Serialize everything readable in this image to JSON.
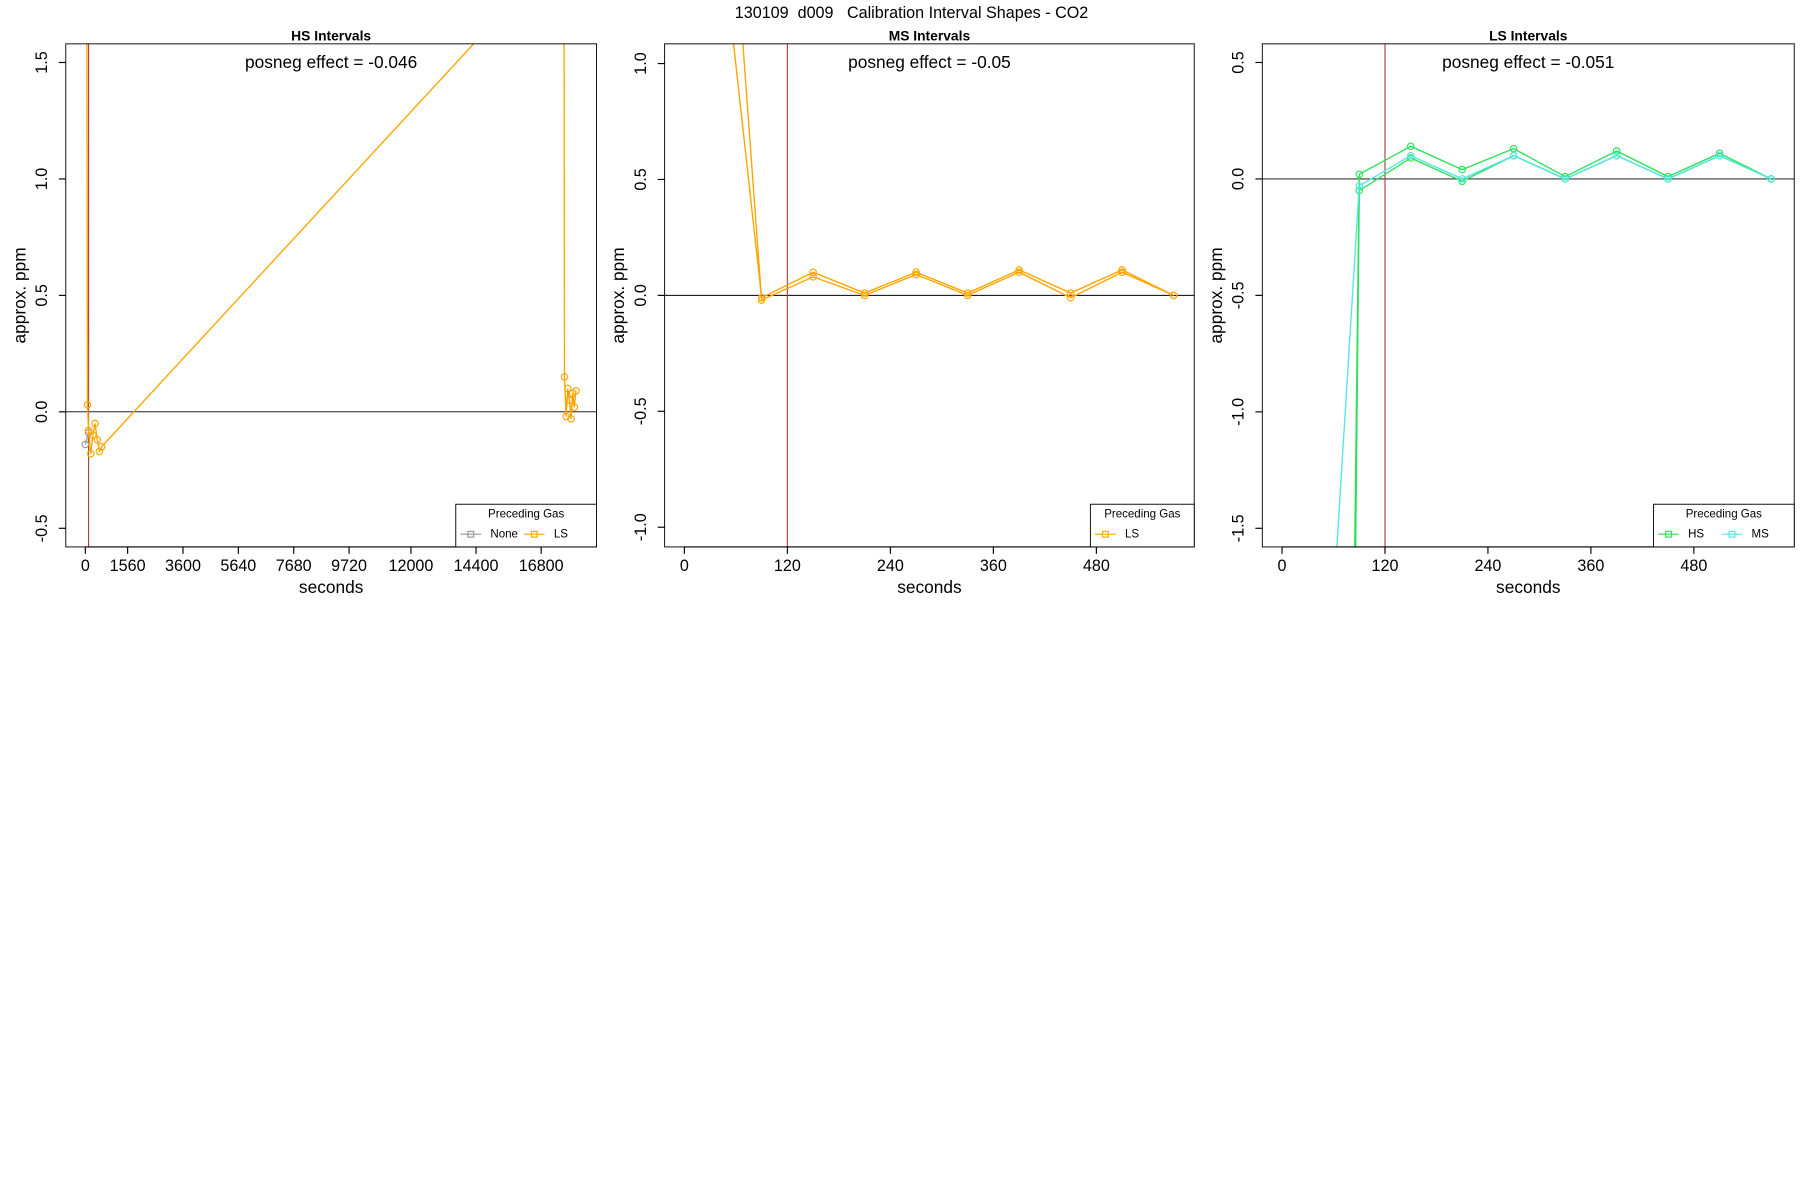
{
  "title": "130109  d009   Calibration Interval Shapes - CO2",
  "chart_data": [
    {
      "type": "line",
      "title": "HS Intervals",
      "annotation": "posneg effect = -0.046",
      "xlabel": "seconds",
      "ylabel": "approx. ppm",
      "xlim": [
        -720,
        18840
      ],
      "ylim": [
        -0.58,
        1.58
      ],
      "xticks": [
        0,
        1560,
        3600,
        5640,
        7680,
        9720,
        12000,
        14400,
        16800
      ],
      "yticks": [
        -0.5,
        {
          "value": 0,
          "label": "0.0"
        },
        {
          "value": 0.5,
          "label": "0.5"
        },
        {
          "value": 1,
          "label": "1.0"
        },
        {
          "value": 1.5,
          "label": "1.5"
        }
      ],
      "hline": 0,
      "vline": 120,
      "vline_color": "#b0413e",
      "legend_title": "Preceding Gas",
      "legend": "bottom right",
      "series": [
        {
          "name": "None",
          "color": "#999999",
          "x": [
            0,
            120
          ],
          "values": [
            -0.14,
            -0.09
          ]
        },
        {
          "name": "LS",
          "color": "#ffa500",
          "x": [
            40,
            80,
            120,
            200,
            280,
            360,
            440,
            520,
            600,
            17640,
            17660,
            17720,
            17780,
            17840,
            17900,
            17960,
            18020,
            18080
          ],
          "values": [
            3.0,
            0.03,
            -0.08,
            -0.18,
            -0.1,
            -0.05,
            -0.12,
            -0.17,
            -0.15,
            2.0,
            0.15,
            -0.02,
            0.1,
            0.05,
            -0.03,
            0.08,
            0.02,
            0.09
          ]
        }
      ]
    },
    {
      "type": "line",
      "title": "MS Intervals",
      "annotation": "posneg effect = -0.05",
      "xlabel": "seconds",
      "ylabel": "approx. ppm",
      "xlim": [
        -23,
        594
      ],
      "ylim": [
        -1.085,
        1.085
      ],
      "xticks": [
        0,
        120,
        240,
        360,
        480
      ],
      "yticks": [
        {
          "value": -1,
          "label": "-1.0"
        },
        -0.5,
        {
          "value": 0,
          "label": "0.0"
        },
        {
          "value": 0.5,
          "label": "0.5"
        },
        {
          "value": 1,
          "label": "1.0"
        }
      ],
      "hline": 0,
      "vline": 120,
      "vline_color": "#b0413e",
      "legend_title": "Preceding Gas",
      "legend": "bottom right",
      "series": [
        {
          "name": "LS",
          "color": "#ffa500",
          "x": [
            30,
            90,
            150,
            210,
            270,
            330,
            390,
            450,
            510,
            570,
            null,
            60,
            90,
            150,
            210,
            270,
            330,
            390,
            450,
            510,
            570
          ],
          "values": [
            2.0,
            -0.01,
            0.1,
            0.01,
            0.1,
            0.01,
            0.11,
            0.01,
            0.11,
            0.0,
            null,
            1.5,
            -0.02,
            0.08,
            0.0,
            0.09,
            0.0,
            0.1,
            -0.01,
            0.1,
            0.0
          ]
        }
      ]
    },
    {
      "type": "line",
      "title": "LS Intervals",
      "annotation": "posneg effect = -0.051",
      "xlabel": "seconds",
      "ylabel": "approx. ppm",
      "xlim": [
        -23,
        597
      ],
      "ylim": [
        -1.58,
        0.58
      ],
      "xticks": [
        0,
        120,
        240,
        360,
        480
      ],
      "yticks": [
        -1.5,
        {
          "value": -1,
          "label": "-1.0"
        },
        -0.5,
        {
          "value": 0,
          "label": "0.0"
        },
        {
          "value": 0.5,
          "label": "0.5"
        }
      ],
      "hline": 0,
      "vline": 120,
      "vline_color": "#b0413e",
      "legend_title": "Preceding Gas",
      "legend": "bottom right",
      "series": [
        {
          "name": "HS",
          "color": "#2fe05a",
          "x": [
            80,
            90,
            150,
            210,
            270,
            330,
            390,
            450,
            510,
            570,
            null,
            82,
            90,
            150,
            210,
            270,
            330,
            390,
            450,
            510,
            570
          ],
          "values": [
            -3.0,
            0.02,
            0.14,
            0.04,
            0.13,
            0.01,
            0.12,
            0.01,
            0.11,
            0.0,
            null,
            -3.0,
            -0.05,
            0.09,
            -0.01,
            0.1,
            0.0,
            0.1,
            0.0,
            0.1,
            0.0
          ]
        },
        {
          "name": "MS",
          "color": "#55e6e6",
          "x": [
            40,
            90,
            150,
            210,
            270,
            330,
            390,
            450,
            510,
            570
          ],
          "values": [
            -3.0,
            -0.03,
            0.1,
            0.0,
            0.1,
            0.0,
            0.1,
            0.0,
            0.1,
            0.0
          ]
        }
      ]
    }
  ]
}
